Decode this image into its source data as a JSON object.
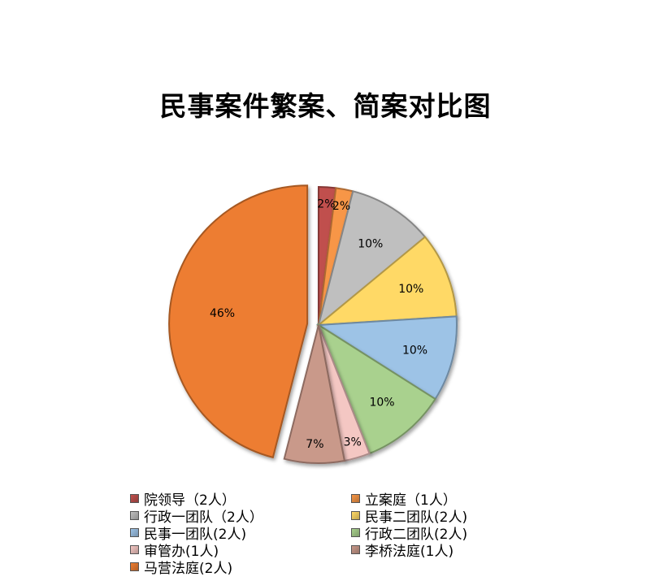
{
  "chart_data": {
    "type": "pie",
    "title": "民事案件繁案、简案对比图",
    "slices": [
      {
        "name": "院领导（2人）",
        "value": 2,
        "label": "2%",
        "color": "#C0504D"
      },
      {
        "name": "立案庭（1人）",
        "value": 2,
        "label": "2%",
        "color": "#F79646"
      },
      {
        "name": "行政一团队（2人）",
        "value": 10,
        "label": "10%",
        "color": "#BFBFBF"
      },
      {
        "name": "民事二团队(2人)",
        "value": 10,
        "label": "10%",
        "color": "#FFD966"
      },
      {
        "name": "民事一团队(2人)",
        "value": 10,
        "label": "10%",
        "color": "#9DC3E6"
      },
      {
        "name": "行政二团队(2人)",
        "value": 10,
        "label": "10%",
        "color": "#A9D18E"
      },
      {
        "name": "审管办(1人)",
        "value": 3,
        "label": "3%",
        "color": "#F4C7C3"
      },
      {
        "name": "李桥法庭(1人)",
        "value": 7,
        "label": "7%",
        "color": "#C9998A"
      },
      {
        "name": "马营法庭(2人)",
        "value": 46,
        "label": "46%",
        "color": "#ED7D31"
      }
    ],
    "legend_position": "bottom"
  }
}
